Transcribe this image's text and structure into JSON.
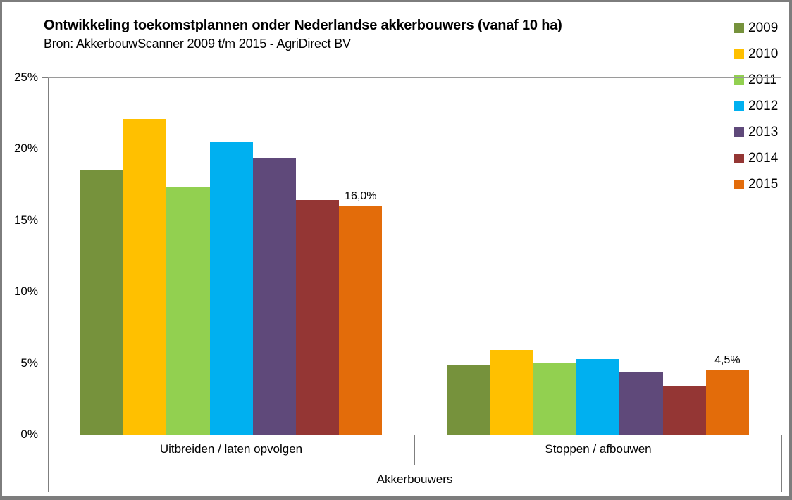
{
  "chart_data": {
    "type": "bar",
    "title": "Ontwikkeling toekomstplannen onder Nederlandse akkerbouwers (vanaf 10 ha)",
    "subtitle": "Bron: AkkerbouwScanner 2009 t/m 2015 - AgriDirect BV",
    "categories": [
      "Uitbreiden / laten opvolgen",
      "Stoppen / afbouwen"
    ],
    "x_axis_title": "Akkerbouwers",
    "y_axis": {
      "min": 0,
      "max": 25,
      "step": 5,
      "tick_labels": [
        "0%",
        "5%",
        "10%",
        "15%",
        "20%",
        "25%"
      ],
      "unit": "percent"
    },
    "grid": true,
    "legend_position": "right",
    "series": [
      {
        "name": "2009",
        "color": "#76923C",
        "values": [
          18.5,
          4.9
        ]
      },
      {
        "name": "2010",
        "color": "#FFC000",
        "values": [
          22.1,
          5.9
        ]
      },
      {
        "name": "2011",
        "color": "#92D050",
        "values": [
          17.3,
          5.0
        ]
      },
      {
        "name": "2012",
        "color": "#00B0F0",
        "values": [
          20.5,
          5.3
        ]
      },
      {
        "name": "2013",
        "color": "#5F497A",
        "values": [
          19.4,
          4.4
        ]
      },
      {
        "name": "2014",
        "color": "#943634",
        "values": [
          16.4,
          3.4
        ]
      },
      {
        "name": "2015",
        "color": "#E36C0A",
        "values": [
          16.0,
          4.5
        ],
        "point_labels": [
          "16,0%",
          "4,5%"
        ]
      }
    ]
  },
  "colors": {
    "background": "#ffffff",
    "border": "#7d7d7d",
    "gridline": "#9a9a9a",
    "axis": "#7f7f7f",
    "text": "#000000"
  }
}
